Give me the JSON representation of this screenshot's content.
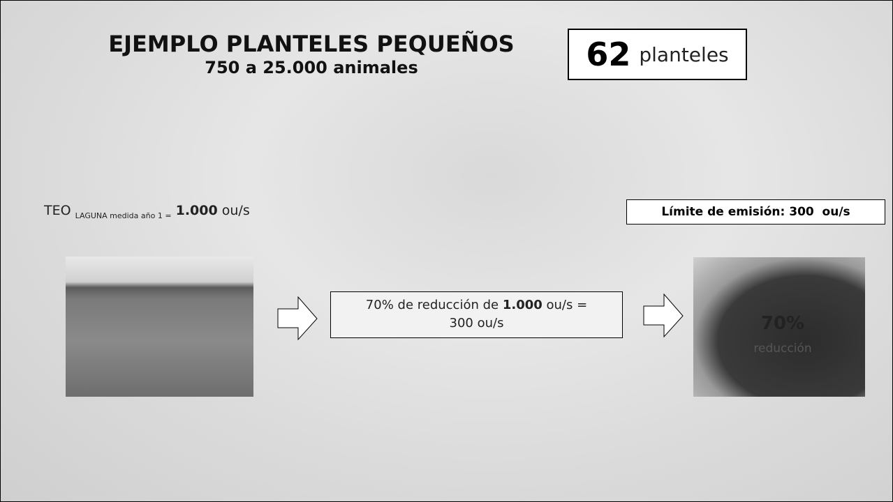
{
  "header": {
    "title": "EJEMPLO PLANTELES PEQUEÑOS",
    "subtitle": "750 a 25.000 animales"
  },
  "count_box": {
    "number": "62",
    "label": "planteles"
  },
  "teo": {
    "prefix": "TEO",
    "subscript": "LAGUNA medida año 1 =",
    "value": "1.000",
    "unit": "ou/s"
  },
  "limit_box": {
    "text": "Límite de emisión: 300  ou/s"
  },
  "reduction_box": {
    "before": "70% de reducción de",
    "value": "1.000",
    "after": "ou/s =",
    "result": "300 ou/s"
  },
  "right_image": {
    "percent": "70%",
    "label": "reducción"
  }
}
